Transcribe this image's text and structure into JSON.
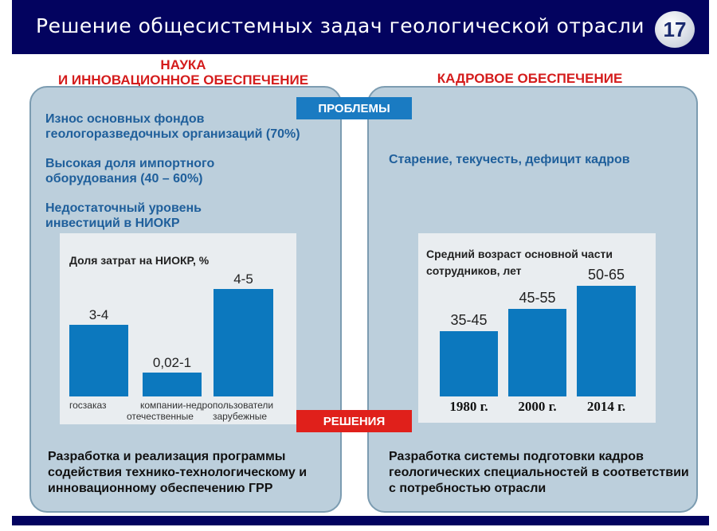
{
  "header": {
    "title": "Решение общесистемных задач геологической отрасли",
    "slide_number": "17"
  },
  "left": {
    "heading_line1": "НАУКА",
    "heading_line2": "И ИННОВАЦИОННОЕ ОБЕСПЕЧЕНИЕ",
    "problems": [
      "Износ основных фондов геологоразведочных организаций (70%)",
      "Высокая доля импортного оборудования (40 – 60%)",
      "Недостаточный уровень инвестиций в НИОКР"
    ],
    "solution": "Разработка и реализация программы содействия технико-технологическому и инновационному обеспечению ГРР"
  },
  "right": {
    "heading": "КАДРОВОЕ ОБЕСПЕЧЕНИЕ",
    "problem": "Старение, текучесть, дефицит кадров",
    "solution": "Разработка системы подготовки кадров геологических специальностей в соответствии с потребностью отрасли"
  },
  "tags": {
    "problems": "ПРОБЛЕМЫ",
    "solutions": "РЕШЕНИЯ"
  },
  "colors": {
    "header": "#03035f",
    "bar": "#0c78be",
    "heading": "#d41c1c",
    "problems_tag": "#1a7bc2",
    "solutions_tag": "#e0201b",
    "text": "#1f5f9b"
  },
  "chart_data": [
    {
      "type": "bar",
      "title": "Доля затрат на НИОКР, %",
      "categories": [
        "госзаказ",
        "компании-недропользователи отечественные",
        "компании-недропользователи зарубежные"
      ],
      "category_line1": [
        "госзаказ",
        "компании-недропользователи",
        ""
      ],
      "category_line2": [
        "",
        "отечественные",
        "зарубежные"
      ],
      "labels": [
        "3-4",
        "0,02-1",
        "4-5"
      ],
      "values": [
        [
          3,
          4
        ],
        [
          0.02,
          1
        ],
        [
          4,
          5
        ]
      ]
    },
    {
      "type": "bar",
      "title": "Средний возраст основной части сотрудников, лет",
      "categories": [
        "1980 г.",
        "2000 г.",
        "2014 г."
      ],
      "labels": [
        "35-45",
        "45-55",
        "50-65"
      ],
      "values": [
        [
          35,
          45
        ],
        [
          45,
          55
        ],
        [
          50,
          65
        ]
      ]
    }
  ]
}
